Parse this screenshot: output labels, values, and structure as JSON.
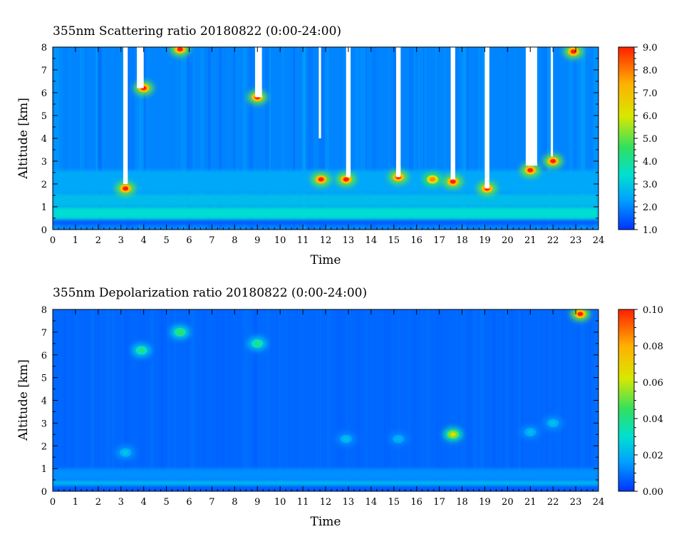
{
  "panels": [
    {
      "title": "355nm Scattering ratio  20180822 (0:00-24:00)",
      "xlabel": "Time",
      "ylabel": "Altitude [km]",
      "x_ticks": [
        "0",
        "1",
        "2",
        "3",
        "4",
        "5",
        "6",
        "7",
        "8",
        "9",
        "10",
        "11",
        "12",
        "13",
        "14",
        "15",
        "16",
        "17",
        "18",
        "19",
        "20",
        "21",
        "22",
        "23",
        "24"
      ],
      "y_ticks": [
        "0",
        "1",
        "2",
        "3",
        "4",
        "5",
        "6",
        "7",
        "8"
      ],
      "colorbar_ticks": [
        "1.0",
        "2.0",
        "3.0",
        "4.0",
        "5.0",
        "6.0",
        "7.0",
        "8.0",
        "9.0"
      ]
    },
    {
      "title": "355nm Depolarization ratio  20180822 (0:00-24:00)",
      "xlabel": "Time",
      "ylabel": "Altitude [km]",
      "x_ticks": [
        "0",
        "1",
        "2",
        "3",
        "4",
        "5",
        "6",
        "7",
        "8",
        "9",
        "10",
        "11",
        "12",
        "13",
        "14",
        "15",
        "16",
        "17",
        "18",
        "19",
        "20",
        "21",
        "22",
        "23",
        "24"
      ],
      "y_ticks": [
        "0",
        "1",
        "2",
        "3",
        "4",
        "5",
        "6",
        "7",
        "8"
      ],
      "colorbar_ticks": [
        "0.00",
        "0.02",
        "0.04",
        "0.06",
        "0.08",
        "0.10"
      ]
    }
  ],
  "chart_data": [
    {
      "type": "heatmap",
      "title": "355nm Scattering ratio  20180822 (0:00-24:00)",
      "xlabel": "Time",
      "ylabel": "Altitude [km]",
      "xlim": [
        0,
        24
      ],
      "ylim": [
        0,
        8
      ],
      "clim": [
        1.0,
        9.0
      ],
      "colormap": [
        "#0033ff",
        "#00a0ff",
        "#00e0d0",
        "#30e060",
        "#d8e800",
        "#ffb000",
        "#ff2000"
      ],
      "background_level": 2.0,
      "layers": [
        {
          "y": [
            0.2,
            0.45
          ],
          "value": 1.5
        },
        {
          "y": [
            0.45,
            1.0
          ],
          "value": 3.6
        },
        {
          "y": [
            1.0,
            1.6
          ],
          "value": 2.9
        },
        {
          "y": [
            1.6,
            2.6
          ],
          "value": 2.5
        }
      ],
      "clouds": [
        {
          "x": 3.2,
          "y": 1.8,
          "value": 9.0
        },
        {
          "x": 4.0,
          "y": 6.2,
          "value": 9.0
        },
        {
          "x": 5.6,
          "y": 7.9,
          "value": 9.0
        },
        {
          "x": 9.0,
          "y": 5.8,
          "value": 9.0
        },
        {
          "x": 11.8,
          "y": 2.2,
          "value": 9.0
        },
        {
          "x": 12.9,
          "y": 2.2,
          "value": 9.0
        },
        {
          "x": 15.2,
          "y": 2.3,
          "value": 9.0
        },
        {
          "x": 16.7,
          "y": 2.2,
          "value": 8.0
        },
        {
          "x": 17.6,
          "y": 2.1,
          "value": 9.0
        },
        {
          "x": 19.1,
          "y": 1.8,
          "value": 9.0
        },
        {
          "x": 21.0,
          "y": 2.6,
          "value": 9.0
        },
        {
          "x": 22.0,
          "y": 3.0,
          "value": 9.0
        },
        {
          "x": 22.9,
          "y": 7.8,
          "value": 9.0
        }
      ],
      "missing_columns": [
        {
          "x": [
            3.1,
            3.3
          ],
          "y": [
            2.0,
            8.0
          ]
        },
        {
          "x": [
            3.7,
            4.0
          ],
          "y": [
            6.2,
            8.0
          ]
        },
        {
          "x": [
            8.9,
            9.2
          ],
          "y": [
            5.8,
            8.0
          ]
        },
        {
          "x": [
            11.7,
            11.8
          ],
          "y": [
            4.0,
            8.0
          ]
        },
        {
          "x": [
            12.9,
            13.1
          ],
          "y": [
            2.3,
            8.0
          ]
        },
        {
          "x": [
            15.1,
            15.3
          ],
          "y": [
            2.3,
            8.0
          ]
        },
        {
          "x": [
            17.5,
            17.7
          ],
          "y": [
            2.2,
            8.0
          ]
        },
        {
          "x": [
            19.0,
            19.2
          ],
          "y": [
            1.8,
            8.0
          ]
        },
        {
          "x": [
            20.8,
            21.3
          ],
          "y": [
            2.8,
            8.0
          ]
        },
        {
          "x": [
            21.9,
            22.0
          ],
          "y": [
            3.2,
            8.0
          ]
        }
      ]
    },
    {
      "type": "heatmap",
      "title": "355nm Depolarization ratio  20180822 (0:00-24:00)",
      "xlabel": "Time",
      "ylabel": "Altitude [km]",
      "xlim": [
        0,
        24
      ],
      "ylim": [
        0,
        8
      ],
      "clim": [
        0.0,
        0.1
      ],
      "colormap": [
        "#0033ff",
        "#00a0ff",
        "#00e0d0",
        "#30e060",
        "#d8e800",
        "#ffb000",
        "#ff2000"
      ],
      "background_level": 0.008,
      "layers": [
        {
          "y": [
            0.0,
            0.25
          ],
          "value": 0.006
        },
        {
          "y": [
            0.25,
            0.5
          ],
          "value": 0.022
        },
        {
          "y": [
            0.5,
            1.0
          ],
          "value": 0.014
        }
      ],
      "clouds": [
        {
          "x": 3.2,
          "y": 1.7,
          "value": 0.026
        },
        {
          "x": 3.9,
          "y": 6.2,
          "value": 0.045
        },
        {
          "x": 5.6,
          "y": 7.0,
          "value": 0.05
        },
        {
          "x": 9.0,
          "y": 6.5,
          "value": 0.045
        },
        {
          "x": 12.9,
          "y": 2.3,
          "value": 0.024
        },
        {
          "x": 15.2,
          "y": 2.3,
          "value": 0.022
        },
        {
          "x": 17.6,
          "y": 2.5,
          "value": 0.07
        },
        {
          "x": 21.0,
          "y": 2.6,
          "value": 0.024
        },
        {
          "x": 22.0,
          "y": 3.0,
          "value": 0.025
        },
        {
          "x": 23.2,
          "y": 7.8,
          "value": 0.1
        }
      ],
      "missing_columns": []
    }
  ]
}
